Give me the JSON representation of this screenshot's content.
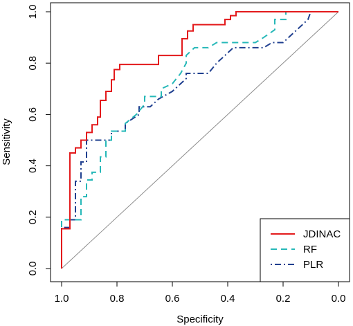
{
  "chart_data": {
    "type": "line",
    "title": "",
    "xlabel": "Specificity",
    "ylabel": "Sensitivity",
    "xlim": [
      1.0,
      0.0
    ],
    "ylim": [
      0.0,
      1.0
    ],
    "x_reversed": true,
    "xticks": [
      "1.0",
      "0.8",
      "0.6",
      "0.4",
      "0.2",
      "0.0"
    ],
    "yticks": [
      "0.0",
      "0.2",
      "0.4",
      "0.6",
      "0.8",
      "1.0"
    ],
    "grid": false,
    "legend_position": "bottom-right",
    "reference_line": {
      "from": [
        1.0,
        0.0
      ],
      "to": [
        0.0,
        1.0
      ],
      "color": "#8c8c8c"
    },
    "series": [
      {
        "name": "JDINAC",
        "color": "#e31a1c",
        "style": "solid",
        "points": [
          [
            1.0,
            0.0
          ],
          [
            1.0,
            0.155
          ],
          [
            0.97,
            0.155
          ],
          [
            0.97,
            0.45
          ],
          [
            0.95,
            0.45
          ],
          [
            0.95,
            0.47
          ],
          [
            0.93,
            0.47
          ],
          [
            0.93,
            0.5
          ],
          [
            0.91,
            0.5
          ],
          [
            0.91,
            0.53
          ],
          [
            0.89,
            0.53
          ],
          [
            0.89,
            0.56
          ],
          [
            0.87,
            0.56
          ],
          [
            0.87,
            0.59
          ],
          [
            0.86,
            0.59
          ],
          [
            0.86,
            0.655
          ],
          [
            0.84,
            0.655
          ],
          [
            0.84,
            0.69
          ],
          [
            0.82,
            0.69
          ],
          [
            0.82,
            0.735
          ],
          [
            0.81,
            0.735
          ],
          [
            0.81,
            0.775
          ],
          [
            0.79,
            0.775
          ],
          [
            0.79,
            0.795
          ],
          [
            0.65,
            0.795
          ],
          [
            0.65,
            0.83
          ],
          [
            0.565,
            0.83
          ],
          [
            0.565,
            0.895
          ],
          [
            0.545,
            0.895
          ],
          [
            0.545,
            0.925
          ],
          [
            0.525,
            0.925
          ],
          [
            0.525,
            0.95
          ],
          [
            0.41,
            0.95
          ],
          [
            0.41,
            0.97
          ],
          [
            0.39,
            0.97
          ],
          [
            0.39,
            0.985
          ],
          [
            0.37,
            0.985
          ],
          [
            0.37,
            1.0
          ],
          [
            0.0,
            1.0
          ]
        ]
      },
      {
        "name": "RF",
        "color": "#26b8b8",
        "style": "dashed",
        "points": [
          [
            1.0,
            0.0
          ],
          [
            1.0,
            0.19
          ],
          [
            0.97,
            0.19
          ],
          [
            0.93,
            0.19
          ],
          [
            0.93,
            0.28
          ],
          [
            0.91,
            0.28
          ],
          [
            0.91,
            0.345
          ],
          [
            0.89,
            0.345
          ],
          [
            0.89,
            0.375
          ],
          [
            0.86,
            0.375
          ],
          [
            0.86,
            0.435
          ],
          [
            0.84,
            0.435
          ],
          [
            0.84,
            0.5
          ],
          [
            0.82,
            0.5
          ],
          [
            0.82,
            0.535
          ],
          [
            0.77,
            0.535
          ],
          [
            0.77,
            0.565
          ],
          [
            0.73,
            0.6
          ],
          [
            0.7,
            0.64
          ],
          [
            0.7,
            0.67
          ],
          [
            0.64,
            0.67
          ],
          [
            0.64,
            0.7
          ],
          [
            0.6,
            0.72
          ],
          [
            0.57,
            0.76
          ],
          [
            0.55,
            0.8
          ],
          [
            0.55,
            0.83
          ],
          [
            0.52,
            0.86
          ],
          [
            0.47,
            0.86
          ],
          [
            0.44,
            0.88
          ],
          [
            0.3,
            0.88
          ],
          [
            0.27,
            0.9
          ],
          [
            0.23,
            0.93
          ],
          [
            0.23,
            0.97
          ],
          [
            0.19,
            0.97
          ],
          [
            0.19,
            1.0
          ],
          [
            0.0,
            1.0
          ]
        ]
      },
      {
        "name": "PLR",
        "color": "#1f3f8f",
        "style": "dotdash",
        "points": [
          [
            1.0,
            0.0
          ],
          [
            1.0,
            0.16
          ],
          [
            0.97,
            0.16
          ],
          [
            0.97,
            0.19
          ],
          [
            0.95,
            0.19
          ],
          [
            0.95,
            0.34
          ],
          [
            0.93,
            0.34
          ],
          [
            0.93,
            0.415
          ],
          [
            0.91,
            0.415
          ],
          [
            0.91,
            0.5
          ],
          [
            0.82,
            0.5
          ],
          [
            0.82,
            0.535
          ],
          [
            0.77,
            0.535
          ],
          [
            0.77,
            0.565
          ],
          [
            0.72,
            0.6
          ],
          [
            0.72,
            0.63
          ],
          [
            0.68,
            0.63
          ],
          [
            0.65,
            0.66
          ],
          [
            0.6,
            0.69
          ],
          [
            0.57,
            0.72
          ],
          [
            0.55,
            0.74
          ],
          [
            0.55,
            0.76
          ],
          [
            0.47,
            0.76
          ],
          [
            0.44,
            0.8
          ],
          [
            0.4,
            0.84
          ],
          [
            0.38,
            0.86
          ],
          [
            0.27,
            0.86
          ],
          [
            0.24,
            0.88
          ],
          [
            0.2,
            0.88
          ],
          [
            0.17,
            0.91
          ],
          [
            0.14,
            0.94
          ],
          [
            0.11,
            0.97
          ],
          [
            0.1,
            1.0
          ],
          [
            0.0,
            1.0
          ]
        ]
      }
    ]
  }
}
